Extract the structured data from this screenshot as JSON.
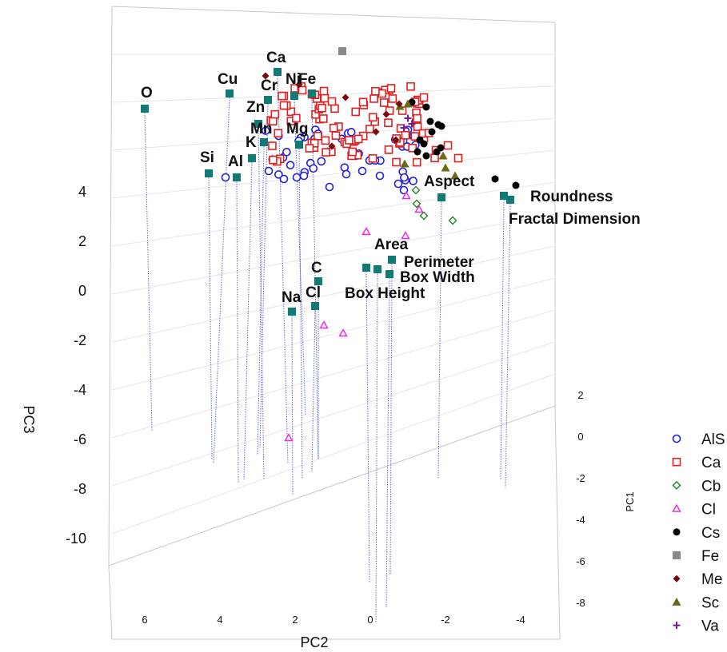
{
  "chart_data": {
    "type": "scatter",
    "dimensions": 3,
    "x_axis": {
      "label": "PC2",
      "ticks": [
        "6",
        "4",
        "2",
        "0",
        "-2",
        "-4"
      ]
    },
    "y_axis": {
      "label": "PC1",
      "ticks": [
        "2",
        "0",
        "-2",
        "-4",
        "-6",
        "-8"
      ]
    },
    "z_axis": {
      "label": "PC3",
      "ticks": [
        "4",
        "2",
        "0",
        "-2",
        "-4",
        "-6",
        "-8",
        "-10"
      ]
    },
    "legend": [
      "AlS",
      "Ca",
      "Cb",
      "Cl",
      "Cs",
      "Fe",
      "Me",
      "Sc",
      "Va"
    ],
    "colors": {
      "AlS": "#1f1fe0",
      "Ca": "#e02020",
      "Cb": "#1f8a1f",
      "Cl": "#ee22ee",
      "Cs": "#000000",
      "Fe": "#8a8a8a",
      "Me": "#7a0a0a",
      "Sc": "#6a6a10",
      "Va": "#7a1a9a",
      "variable": "#0f7a78",
      "dropline": "#5a6ae0",
      "grid": "#c8c8c8"
    },
    "variables": [
      "O",
      "Cu",
      "Ca",
      "Cr",
      "Ni",
      "Fe",
      "Zn",
      "Mn",
      "Mg",
      "K",
      "Si",
      "Al",
      "Aspect",
      "Roundness",
      "Fractal Dimension",
      "Area",
      "Perimeter",
      "Box Width",
      "Box Height",
      "C",
      "Cl",
      "Na"
    ]
  }
}
